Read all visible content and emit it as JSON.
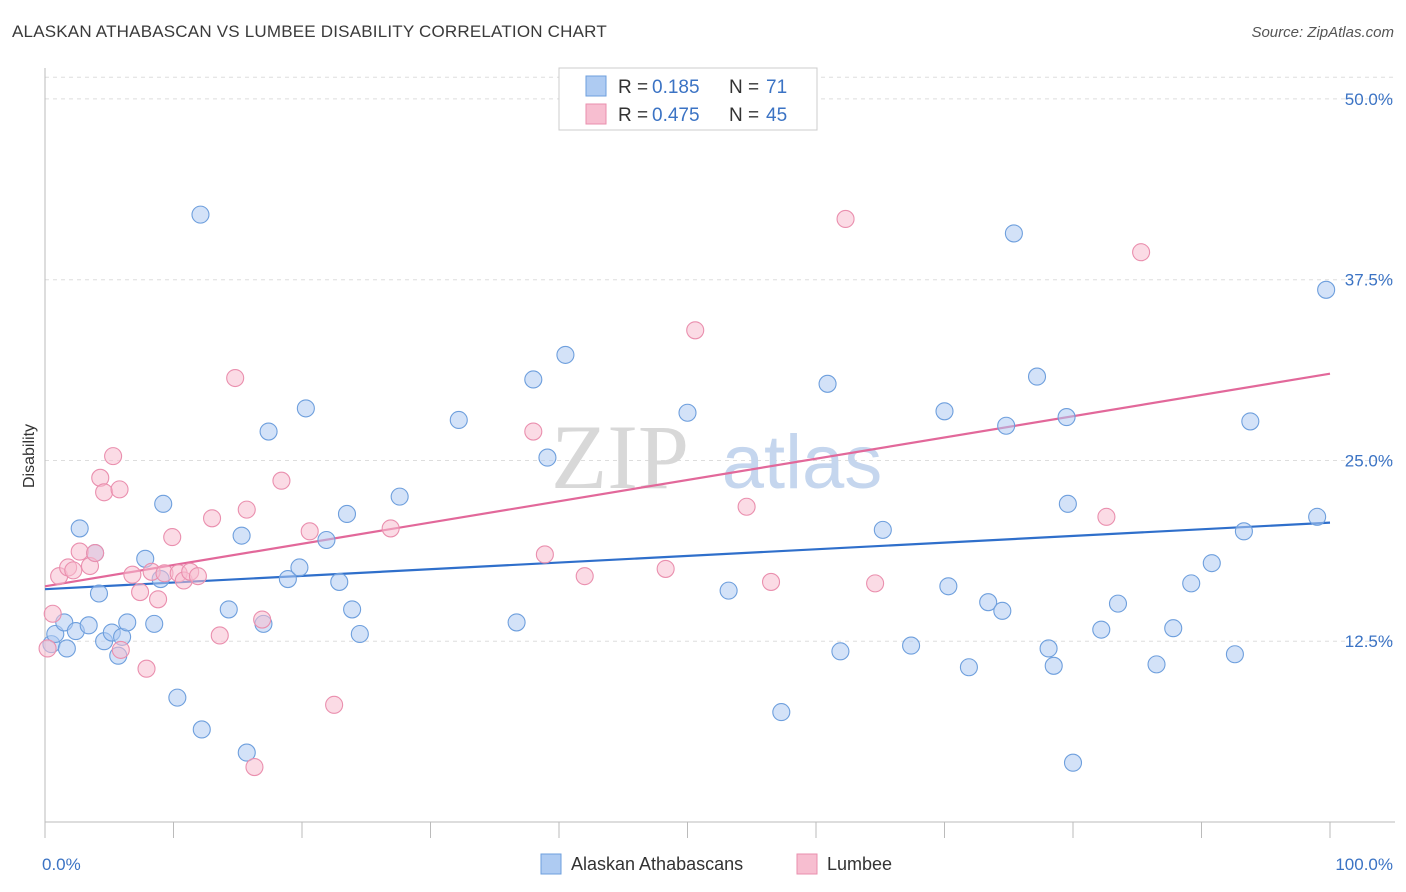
{
  "header": {
    "title": "ALASKAN ATHABASCAN VS LUMBEE DISABILITY CORRELATION CHART",
    "source": "Source: ZipAtlas.com"
  },
  "watermark": {
    "zip": "ZIP",
    "atlas": "atlas"
  },
  "chart_data": {
    "type": "scatter",
    "ylabel": "Disability",
    "xlim": [
      0,
      100
    ],
    "ylim": [
      0,
      52
    ],
    "x_tick_labels": [
      "0.0%",
      "100.0%"
    ],
    "y_ticks": [
      {
        "value": 12.5,
        "label": "12.5%"
      },
      {
        "value": 25.0,
        "label": "25.0%"
      },
      {
        "value": 37.5,
        "label": "37.5%"
      },
      {
        "value": 50.0,
        "label": "50.0%"
      }
    ],
    "grid": true,
    "legend": {
      "position": "top-center",
      "entries": [
        {
          "r_label": "R =",
          "r_value": "0.185",
          "n_label": "N =",
          "n_value": "71",
          "swatch": "#aecbf2"
        },
        {
          "r_label": "R =",
          "r_value": "0.475",
          "n_label": "N =",
          "n_value": "45",
          "swatch": "#f7bed0"
        }
      ]
    },
    "series": [
      {
        "name": "Alaskan Athabascans",
        "color_fill": "#aecbf2",
        "color_stroke": "#6e9fdd",
        "line_color": "#2f6fcb",
        "trend": {
          "x": [
            0,
            100
          ],
          "y": [
            16.1,
            20.7
          ]
        },
        "points": [
          [
            0.5,
            12.3
          ],
          [
            0.8,
            13.0
          ],
          [
            1.5,
            13.8
          ],
          [
            1.7,
            12.0
          ],
          [
            2.4,
            13.2
          ],
          [
            2.7,
            20.3
          ],
          [
            3.4,
            13.6
          ],
          [
            3.9,
            18.6
          ],
          [
            4.2,
            15.8
          ],
          [
            4.6,
            12.5
          ],
          [
            5.2,
            13.1
          ],
          [
            5.7,
            11.5
          ],
          [
            6.0,
            12.8
          ],
          [
            6.4,
            13.8
          ],
          [
            7.8,
            18.2
          ],
          [
            8.5,
            13.7
          ],
          [
            9.0,
            16.8
          ],
          [
            9.2,
            22.0
          ],
          [
            10.3,
            8.6
          ],
          [
            12.1,
            42.0
          ],
          [
            12.2,
            6.4
          ],
          [
            14.3,
            14.7
          ],
          [
            15.3,
            19.8
          ],
          [
            15.7,
            4.8
          ],
          [
            17.0,
            13.7
          ],
          [
            17.4,
            27.0
          ],
          [
            18.9,
            16.8
          ],
          [
            19.8,
            17.6
          ],
          [
            20.3,
            28.6
          ],
          [
            21.9,
            19.5
          ],
          [
            22.9,
            16.6
          ],
          [
            23.5,
            21.3
          ],
          [
            23.9,
            14.7
          ],
          [
            24.5,
            13.0
          ],
          [
            27.6,
            22.5
          ],
          [
            32.2,
            27.8
          ],
          [
            36.7,
            13.8
          ],
          [
            38.0,
            30.6
          ],
          [
            39.1,
            25.2
          ],
          [
            40.5,
            32.3
          ],
          [
            50.0,
            28.3
          ],
          [
            53.2,
            16.0
          ],
          [
            57.3,
            7.6
          ],
          [
            60.9,
            30.3
          ],
          [
            61.9,
            11.8
          ],
          [
            65.2,
            20.2
          ],
          [
            67.4,
            12.2
          ],
          [
            70.0,
            28.4
          ],
          [
            70.3,
            16.3
          ],
          [
            71.9,
            10.7
          ],
          [
            73.4,
            15.2
          ],
          [
            74.5,
            14.6
          ],
          [
            74.8,
            27.4
          ],
          [
            75.4,
            40.7
          ],
          [
            77.2,
            30.8
          ],
          [
            78.1,
            12.0
          ],
          [
            78.5,
            10.8
          ],
          [
            79.5,
            28.0
          ],
          [
            79.6,
            22.0
          ],
          [
            80.0,
            4.1
          ],
          [
            82.2,
            13.3
          ],
          [
            83.5,
            15.1
          ],
          [
            86.5,
            10.9
          ],
          [
            87.8,
            13.4
          ],
          [
            89.2,
            16.5
          ],
          [
            90.8,
            17.9
          ],
          [
            92.6,
            11.6
          ],
          [
            93.3,
            20.1
          ],
          [
            93.8,
            27.7
          ],
          [
            99.0,
            21.1
          ],
          [
            99.7,
            36.8
          ]
        ]
      },
      {
        "name": "Lumbee",
        "color_fill": "#f7bed0",
        "color_stroke": "#ea8fae",
        "line_color": "#e2689a",
        "trend": {
          "x": [
            0,
            100
          ],
          "y": [
            16.3,
            31.0
          ]
        },
        "points": [
          [
            0.2,
            12.0
          ],
          [
            0.6,
            14.4
          ],
          [
            1.1,
            17.0
          ],
          [
            1.8,
            17.6
          ],
          [
            2.2,
            17.4
          ],
          [
            2.7,
            18.7
          ],
          [
            3.5,
            17.7
          ],
          [
            3.9,
            18.6
          ],
          [
            4.3,
            23.8
          ],
          [
            4.6,
            22.8
          ],
          [
            5.3,
            25.3
          ],
          [
            5.8,
            23.0
          ],
          [
            5.9,
            11.9
          ],
          [
            6.8,
            17.1
          ],
          [
            7.4,
            15.9
          ],
          [
            7.9,
            10.6
          ],
          [
            8.3,
            17.3
          ],
          [
            8.8,
            15.4
          ],
          [
            9.3,
            17.2
          ],
          [
            9.9,
            19.7
          ],
          [
            10.4,
            17.2
          ],
          [
            10.8,
            16.7
          ],
          [
            11.3,
            17.3
          ],
          [
            11.9,
            17.0
          ],
          [
            13.0,
            21.0
          ],
          [
            13.6,
            12.9
          ],
          [
            14.8,
            30.7
          ],
          [
            15.7,
            21.6
          ],
          [
            16.3,
            3.8
          ],
          [
            16.9,
            14.0
          ],
          [
            18.4,
            23.6
          ],
          [
            20.6,
            20.1
          ],
          [
            22.5,
            8.1
          ],
          [
            26.9,
            20.3
          ],
          [
            38.0,
            27.0
          ],
          [
            38.9,
            18.5
          ],
          [
            42.0,
            17.0
          ],
          [
            48.3,
            17.5
          ],
          [
            50.6,
            34.0
          ],
          [
            54.6,
            21.8
          ],
          [
            56.5,
            16.6
          ],
          [
            62.3,
            41.7
          ],
          [
            64.6,
            16.5
          ],
          [
            82.6,
            21.1
          ],
          [
            85.3,
            39.4
          ]
        ]
      }
    ]
  }
}
